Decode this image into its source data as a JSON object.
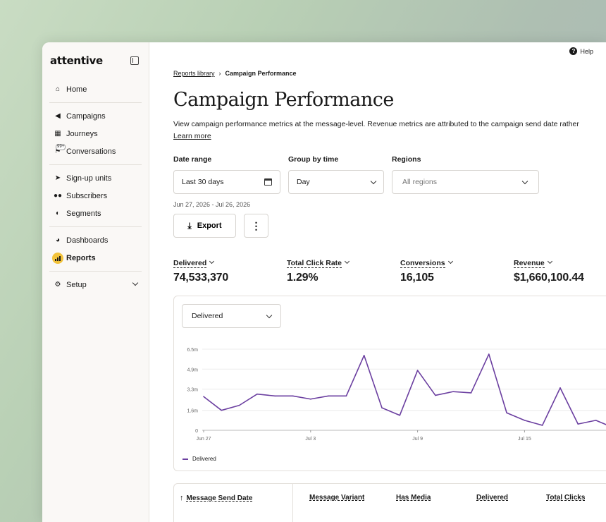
{
  "app": {
    "logo": "attentive",
    "help_label": "Help"
  },
  "sidebar": {
    "items": [
      {
        "label": "Home",
        "icon": "home-icon"
      },
      {
        "label": "Campaigns",
        "icon": "megaphone-icon"
      },
      {
        "label": "Journeys",
        "icon": "journeys-icon"
      },
      {
        "label": "Conversations",
        "icon": "chat-icon",
        "badge": "99+"
      },
      {
        "label": "Sign-up units",
        "icon": "rocket-icon"
      },
      {
        "label": "Subscribers",
        "icon": "people-icon"
      },
      {
        "label": "Segments",
        "icon": "segments-icon"
      },
      {
        "label": "Dashboards",
        "icon": "pie-icon"
      },
      {
        "label": "Reports",
        "icon": "bar-chart-icon",
        "active": true
      },
      {
        "label": "Setup",
        "icon": "gear-icon"
      }
    ]
  },
  "breadcrumb": {
    "parent": "Reports library",
    "current": "Campaign Performance"
  },
  "page": {
    "title": "Campaign Performance",
    "description": "View campaign performance metrics at the message-level. Revenue metrics are attributed to the campaign send date rather",
    "learn_more": "Learn more"
  },
  "filters": {
    "date_range": {
      "label": "Date range",
      "value": "Last 30 days",
      "subtext": "Jun 27, 2026 - Jul 26, 2026"
    },
    "group_by": {
      "label": "Group by time",
      "value": "Day"
    },
    "regions": {
      "label": "Regions",
      "placeholder": "All regions"
    }
  },
  "actions": {
    "export_label": "Export",
    "more_label": "⋮"
  },
  "metrics": [
    {
      "label": "Delivered",
      "value": "74,533,370"
    },
    {
      "label": "Total Click Rate",
      "value": "1.29%"
    },
    {
      "label": "Conversions",
      "value": "16,105"
    },
    {
      "label": "Revenue",
      "value": "$1,660,100.44"
    }
  ],
  "chart": {
    "metric_select": "Delivered",
    "legend": "Delivered",
    "line_color": "#6b3fa0"
  },
  "chart_data": {
    "type": "line",
    "x": [
      "Jun 27",
      "Jun 28",
      "Jun 29",
      "Jun 30",
      "Jul 1",
      "Jul 2",
      "Jul 3",
      "Jul 4",
      "Jul 5",
      "Jul 6",
      "Jul 7",
      "Jul 8",
      "Jul 9",
      "Jul 10",
      "Jul 11",
      "Jul 12",
      "Jul 13",
      "Jul 14",
      "Jul 15",
      "Jul 16",
      "Jul 17",
      "Jul 18",
      "Jul 19",
      "Jul 20"
    ],
    "x_ticks": [
      "Jun 27",
      "Jul 3",
      "Jul 9",
      "Jul 15"
    ],
    "series": [
      {
        "name": "Delivered",
        "values": [
          2.7,
          1.6,
          2.0,
          2.9,
          2.75,
          2.75,
          2.5,
          2.75,
          2.75,
          6.0,
          1.8,
          1.2,
          4.8,
          2.8,
          3.1,
          3.0,
          6.1,
          1.4,
          0.8,
          0.4,
          3.4,
          0.5,
          0.8,
          0.2
        ]
      }
    ],
    "y_ticks": [
      "0",
      "1.6m",
      "3.3m",
      "4.9m",
      "6.5m"
    ],
    "y_tick_values": [
      0,
      1.6,
      3.3,
      4.9,
      6.5
    ],
    "ylim": [
      0,
      6.5
    ],
    "legend_position": "bottom-left",
    "grid": true
  },
  "table": {
    "columns": [
      "Message Send Date",
      "Message Variant",
      "Has Media",
      "Delivered",
      "Total Clicks"
    ]
  }
}
